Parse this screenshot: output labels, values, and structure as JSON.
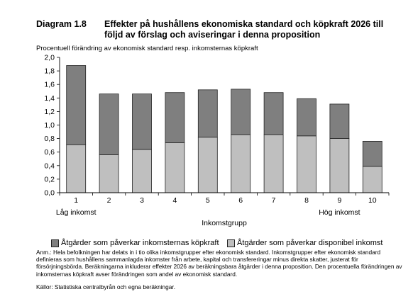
{
  "header": {
    "number": "Diagram 1.8",
    "title": "Effekter på hushållens ekonomiska standard och köpkraft 2026 till följd av förslag och aviseringar i denna proposition"
  },
  "chart_data": {
    "type": "bar",
    "stacked": true,
    "title": "",
    "ylabel": "Procentuell förändring av ekonomisk standard resp. inkomsternas köpkraft",
    "xlabel": "Inkomstgrupp",
    "categories": [
      "1",
      "2",
      "3",
      "4",
      "5",
      "6",
      "7",
      "8",
      "9",
      "10"
    ],
    "category_annotations": [
      {
        "category": "1",
        "text": "Låg inkomst"
      },
      {
        "category": "9",
        "text": "Hög inkomst"
      }
    ],
    "ylim": [
      0,
      2.0
    ],
    "yticks": [
      "0,0",
      "0,2",
      "0,4",
      "0,6",
      "0,8",
      "1,0",
      "1,2",
      "1,4",
      "1,6",
      "1,8",
      "2,0"
    ],
    "ytick_values": [
      0,
      0.2,
      0.4,
      0.6,
      0.8,
      1.0,
      1.2,
      1.4,
      1.6,
      1.8,
      2.0
    ],
    "grid": false,
    "legend_position": "bottom",
    "series": [
      {
        "name": "Åtgärder som påverkar disponibel inkomst",
        "color": "#bfbfbf",
        "values": [
          0.71,
          0.56,
          0.64,
          0.74,
          0.82,
          0.86,
          0.86,
          0.84,
          0.8,
          0.39
        ]
      },
      {
        "name": "Åtgärder som påverkar inkomsternas köpkraft",
        "color": "#7f7f7f",
        "values": [
          1.17,
          0.9,
          0.82,
          0.74,
          0.7,
          0.67,
          0.62,
          0.55,
          0.51,
          0.37
        ]
      }
    ],
    "legend_order": [
      1,
      0
    ]
  },
  "note": "Anm.: Hela befolkningen har delats in i tio olika inkomstgrupper efter ekonomisk standard. Inkomstgrupper efter ekonomisk standard definieras som hushållens sammanlagda inkomster från arbete, kapital och transfereringar minus direkta skatter, justerat för försörjningsbörda. Beräkningarna inkluderar effekter 2026 av beräkningsbara åtgärder i denna proposition. Den procentuella förändringen av inkomsternas köpkraft avser förändringen som andel av ekonomisk standard.",
  "source": "Källor: Statistiska centralbyrån och egna beräkningar."
}
